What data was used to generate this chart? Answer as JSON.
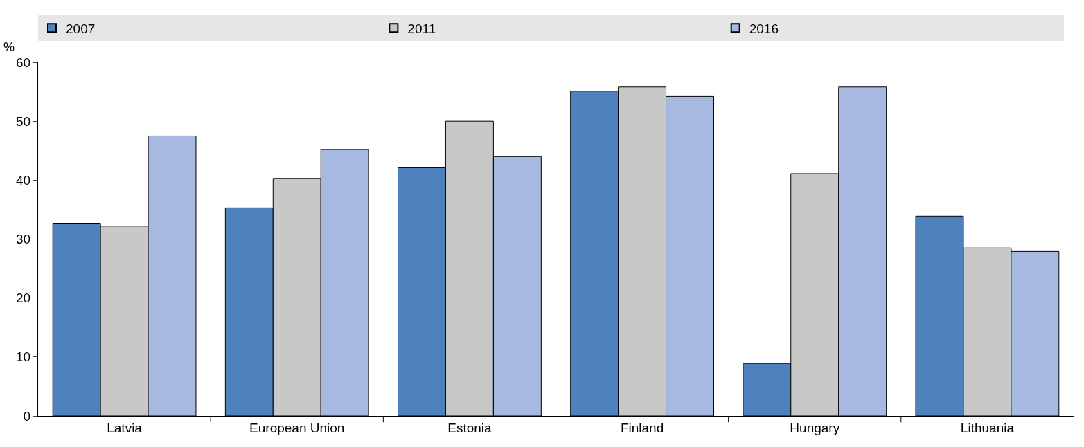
{
  "chart_data": {
    "type": "bar",
    "ylabel": "%",
    "categories": [
      "Latvia",
      "European Union",
      "Estonia",
      "Finland",
      "Hungary",
      "Lithuania"
    ],
    "series": [
      {
        "name": "2007",
        "color": "#4f81bd",
        "values": [
          32.7,
          35.3,
          42.1,
          55.1,
          8.9,
          33.9
        ]
      },
      {
        "name": "2011",
        "color": "#c8c8c8",
        "values": [
          32.2,
          40.3,
          50.0,
          55.8,
          41.1,
          28.5
        ]
      },
      {
        "name": "2016",
        "color": "#a7b8e1",
        "values": [
          47.5,
          45.2,
          44.0,
          54.2,
          55.8,
          27.9
        ]
      }
    ],
    "ylim": [
      0,
      60
    ],
    "yticks": [
      0,
      10,
      20,
      30,
      40,
      50,
      60
    ],
    "legend": "top"
  }
}
